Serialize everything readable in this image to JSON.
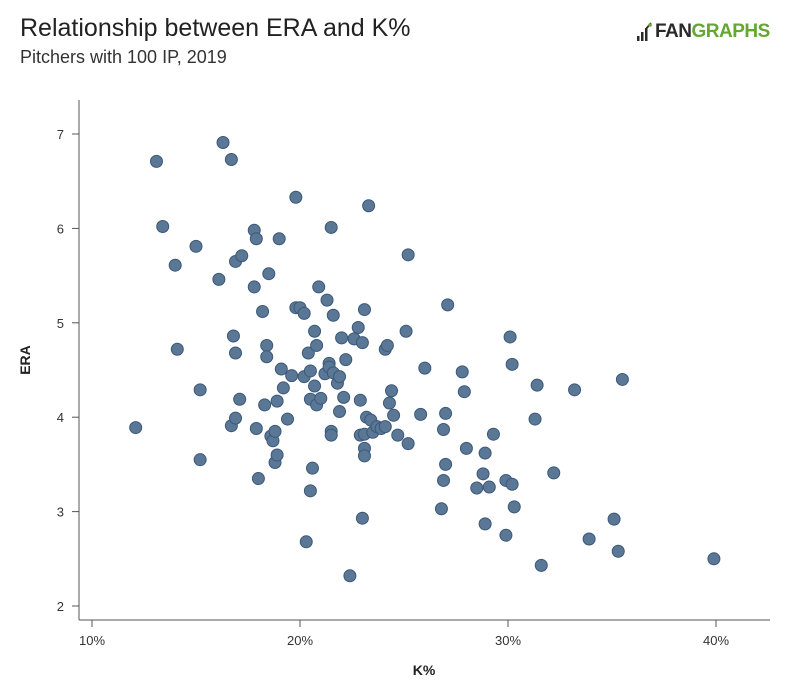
{
  "header": {
    "title": "Relationship between ERA and K%",
    "subtitle": "Pitchers with 100 IP, 2019"
  },
  "logo": {
    "part1": "FAN",
    "part2": "GRAPHS",
    "text_color": "#2a2a2a",
    "accent_color": "#62a832"
  },
  "chart_data": {
    "type": "scatter",
    "title": "Relationship between ERA and K%",
    "subtitle": "Pitchers with 100 IP, 2019",
    "xlabel": "K%",
    "ylabel": "ERA",
    "xlim": [
      0.095,
      0.425
    ],
    "ylim": [
      1.85,
      7.35
    ],
    "xticks": [
      0.1,
      0.2,
      0.3,
      0.4
    ],
    "xtick_labels": [
      "10%",
      "20%",
      "30%",
      "40%"
    ],
    "yticks": [
      2,
      3,
      4,
      5,
      6,
      7
    ],
    "ytick_labels": [
      "2",
      "3",
      "4",
      "5",
      "6",
      "7"
    ],
    "grid": false,
    "marker_color": "#5a7796",
    "marker_edge": "#3b5878",
    "points": [
      [
        0.121,
        3.89
      ],
      [
        0.131,
        6.71
      ],
      [
        0.134,
        6.02
      ],
      [
        0.14,
        5.61
      ],
      [
        0.141,
        4.72
      ],
      [
        0.15,
        5.81
      ],
      [
        0.152,
        4.29
      ],
      [
        0.152,
        3.55
      ],
      [
        0.161,
        5.46
      ],
      [
        0.163,
        6.91
      ],
      [
        0.167,
        6.73
      ],
      [
        0.167,
        3.91
      ],
      [
        0.168,
        4.86
      ],
      [
        0.169,
        5.65
      ],
      [
        0.169,
        4.68
      ],
      [
        0.169,
        3.99
      ],
      [
        0.171,
        4.19
      ],
      [
        0.172,
        5.71
      ],
      [
        0.178,
        5.98
      ],
      [
        0.178,
        5.38
      ],
      [
        0.179,
        5.89
      ],
      [
        0.179,
        3.88
      ],
      [
        0.18,
        3.35
      ],
      [
        0.182,
        5.12
      ],
      [
        0.183,
        4.13
      ],
      [
        0.184,
        4.76
      ],
      [
        0.184,
        4.64
      ],
      [
        0.185,
        5.52
      ],
      [
        0.186,
        3.8
      ],
      [
        0.187,
        3.75
      ],
      [
        0.188,
        3.85
      ],
      [
        0.188,
        3.52
      ],
      [
        0.189,
        4.17
      ],
      [
        0.189,
        3.6
      ],
      [
        0.19,
        5.89
      ],
      [
        0.191,
        4.51
      ],
      [
        0.192,
        4.31
      ],
      [
        0.194,
        3.98
      ],
      [
        0.196,
        4.44
      ],
      [
        0.198,
        6.33
      ],
      [
        0.198,
        5.16
      ],
      [
        0.2,
        5.16
      ],
      [
        0.202,
        5.1
      ],
      [
        0.202,
        4.43
      ],
      [
        0.203,
        2.68
      ],
      [
        0.204,
        4.68
      ],
      [
        0.205,
        4.49
      ],
      [
        0.205,
        4.19
      ],
      [
        0.205,
        3.22
      ],
      [
        0.206,
        3.46
      ],
      [
        0.207,
        4.91
      ],
      [
        0.207,
        4.33
      ],
      [
        0.208,
        4.76
      ],
      [
        0.208,
        4.13
      ],
      [
        0.209,
        5.38
      ],
      [
        0.21,
        4.2
      ],
      [
        0.212,
        4.46
      ],
      [
        0.213,
        5.24
      ],
      [
        0.214,
        4.57
      ],
      [
        0.214,
        4.53
      ],
      [
        0.215,
        6.01
      ],
      [
        0.215,
        3.85
      ],
      [
        0.215,
        3.81
      ],
      [
        0.216,
        5.08
      ],
      [
        0.216,
        4.47
      ],
      [
        0.218,
        4.36
      ],
      [
        0.219,
        4.43
      ],
      [
        0.219,
        4.06
      ],
      [
        0.22,
        4.84
      ],
      [
        0.221,
        4.21
      ],
      [
        0.222,
        4.61
      ],
      [
        0.224,
        2.32
      ],
      [
        0.226,
        4.83
      ],
      [
        0.228,
        4.95
      ],
      [
        0.229,
        4.18
      ],
      [
        0.229,
        3.81
      ],
      [
        0.23,
        4.79
      ],
      [
        0.23,
        2.93
      ],
      [
        0.231,
        5.14
      ],
      [
        0.231,
        3.82
      ],
      [
        0.231,
        3.67
      ],
      [
        0.231,
        3.59
      ],
      [
        0.232,
        4.0
      ],
      [
        0.233,
        6.24
      ],
      [
        0.234,
        3.97
      ],
      [
        0.235,
        3.84
      ],
      [
        0.237,
        3.9
      ],
      [
        0.239,
        3.88
      ],
      [
        0.241,
        3.9
      ],
      [
        0.241,
        4.72
      ],
      [
        0.242,
        4.76
      ],
      [
        0.243,
        4.15
      ],
      [
        0.244,
        4.28
      ],
      [
        0.245,
        4.02
      ],
      [
        0.247,
        3.81
      ],
      [
        0.251,
        4.91
      ],
      [
        0.252,
        5.72
      ],
      [
        0.252,
        3.72
      ],
      [
        0.258,
        4.03
      ],
      [
        0.26,
        4.52
      ],
      [
        0.268,
        3.03
      ],
      [
        0.269,
        3.87
      ],
      [
        0.269,
        3.33
      ],
      [
        0.27,
        4.04
      ],
      [
        0.27,
        3.5
      ],
      [
        0.271,
        5.19
      ],
      [
        0.278,
        4.48
      ],
      [
        0.279,
        4.27
      ],
      [
        0.28,
        3.67
      ],
      [
        0.285,
        3.25
      ],
      [
        0.288,
        3.4
      ],
      [
        0.289,
        3.62
      ],
      [
        0.289,
        2.87
      ],
      [
        0.291,
        3.26
      ],
      [
        0.293,
        3.82
      ],
      [
        0.299,
        3.33
      ],
      [
        0.299,
        2.75
      ],
      [
        0.301,
        4.85
      ],
      [
        0.302,
        4.56
      ],
      [
        0.302,
        3.29
      ],
      [
        0.303,
        3.05
      ],
      [
        0.313,
        3.98
      ],
      [
        0.314,
        4.34
      ],
      [
        0.316,
        2.43
      ],
      [
        0.322,
        3.41
      ],
      [
        0.332,
        4.29
      ],
      [
        0.339,
        2.71
      ],
      [
        0.351,
        2.92
      ],
      [
        0.353,
        2.58
      ],
      [
        0.355,
        4.4
      ],
      [
        0.399,
        2.5
      ]
    ]
  }
}
